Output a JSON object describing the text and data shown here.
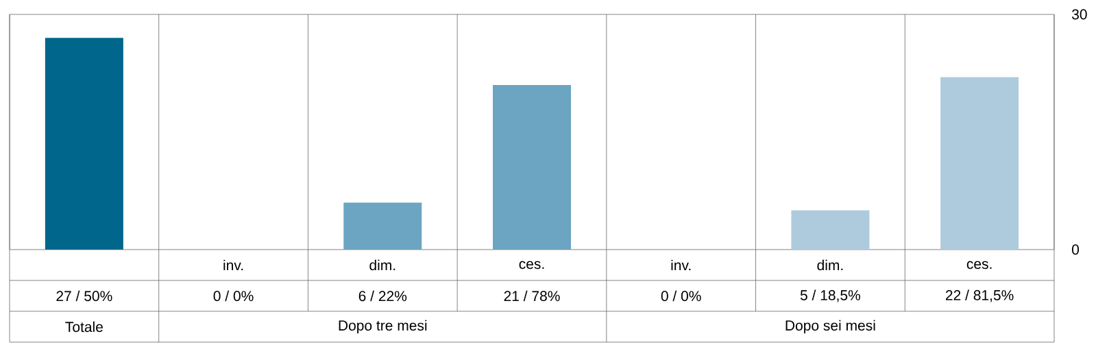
{
  "chart_data": {
    "type": "bar",
    "categories": [
      null,
      "inv.",
      "dim.",
      "ces.",
      "inv.",
      "dim.",
      "ces."
    ],
    "values": [
      27,
      0,
      6,
      21,
      0,
      5,
      22
    ],
    "colors": [
      "#00668c",
      "#6ca5c2",
      "#6ca5c2",
      "#6ca5c2",
      "#aecbdd",
      "#aecbdd",
      "#aecbdd"
    ],
    "value_labels": [
      "27 / 50%",
      "0 / 0%",
      "6 / 22%",
      "21 / 78%",
      "0 / 0%",
      "5 / 18,5%",
      "22 / 81,5%"
    ],
    "ylim": [
      0,
      30
    ],
    "yticks": [
      0,
      30
    ],
    "annotations": [
      "Totale",
      "Dopo tre mesi",
      "Dopo sei mesi"
    ]
  }
}
